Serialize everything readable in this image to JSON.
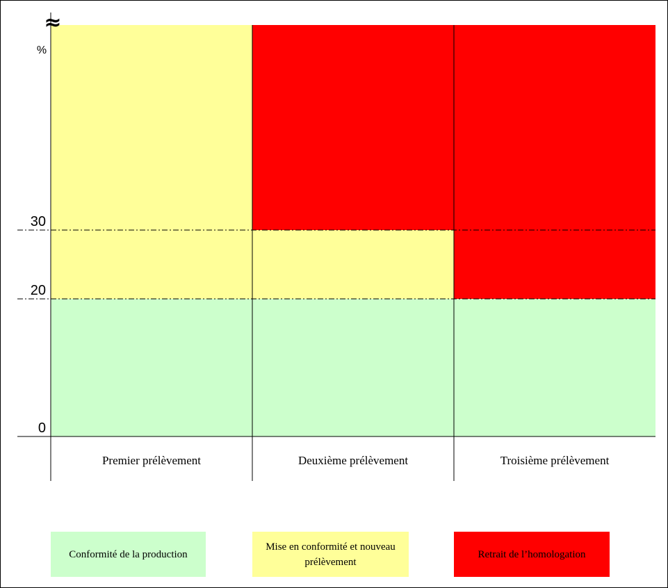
{
  "chart_data": {
    "type": "heatmap",
    "y_unit": "%",
    "y_break_symbol": "≈",
    "y_ticks": [
      0,
      20,
      30
    ],
    "y_range": [
      0,
      60
    ],
    "threshold_lines": [
      20,
      30
    ],
    "categories": [
      "Premier prélèvement",
      "Deuxième prélèvement",
      "Troisième prélèvement"
    ],
    "zones": [
      {
        "category": 0,
        "from": 0,
        "to": 20,
        "status": "conform"
      },
      {
        "category": 0,
        "from": 20,
        "to": 60,
        "status": "retest"
      },
      {
        "category": 1,
        "from": 0,
        "to": 20,
        "status": "conform"
      },
      {
        "category": 1,
        "from": 20,
        "to": 30,
        "status": "retest"
      },
      {
        "category": 1,
        "from": 30,
        "to": 60,
        "status": "withdraw"
      },
      {
        "category": 2,
        "from": 0,
        "to": 20,
        "status": "conform"
      },
      {
        "category": 2,
        "from": 20,
        "to": 60,
        "status": "withdraw"
      }
    ],
    "colors": {
      "conform": "#ccffcc",
      "retest": "#ffff99",
      "withdraw": "#ff0000"
    },
    "legend": [
      {
        "key": "conform",
        "label": "Conformité de la production"
      },
      {
        "key": "retest",
        "label": "Mise en conformité et nouveau prélèvement"
      },
      {
        "key": "withdraw",
        "label": "Retrait de l’homologation"
      }
    ]
  }
}
